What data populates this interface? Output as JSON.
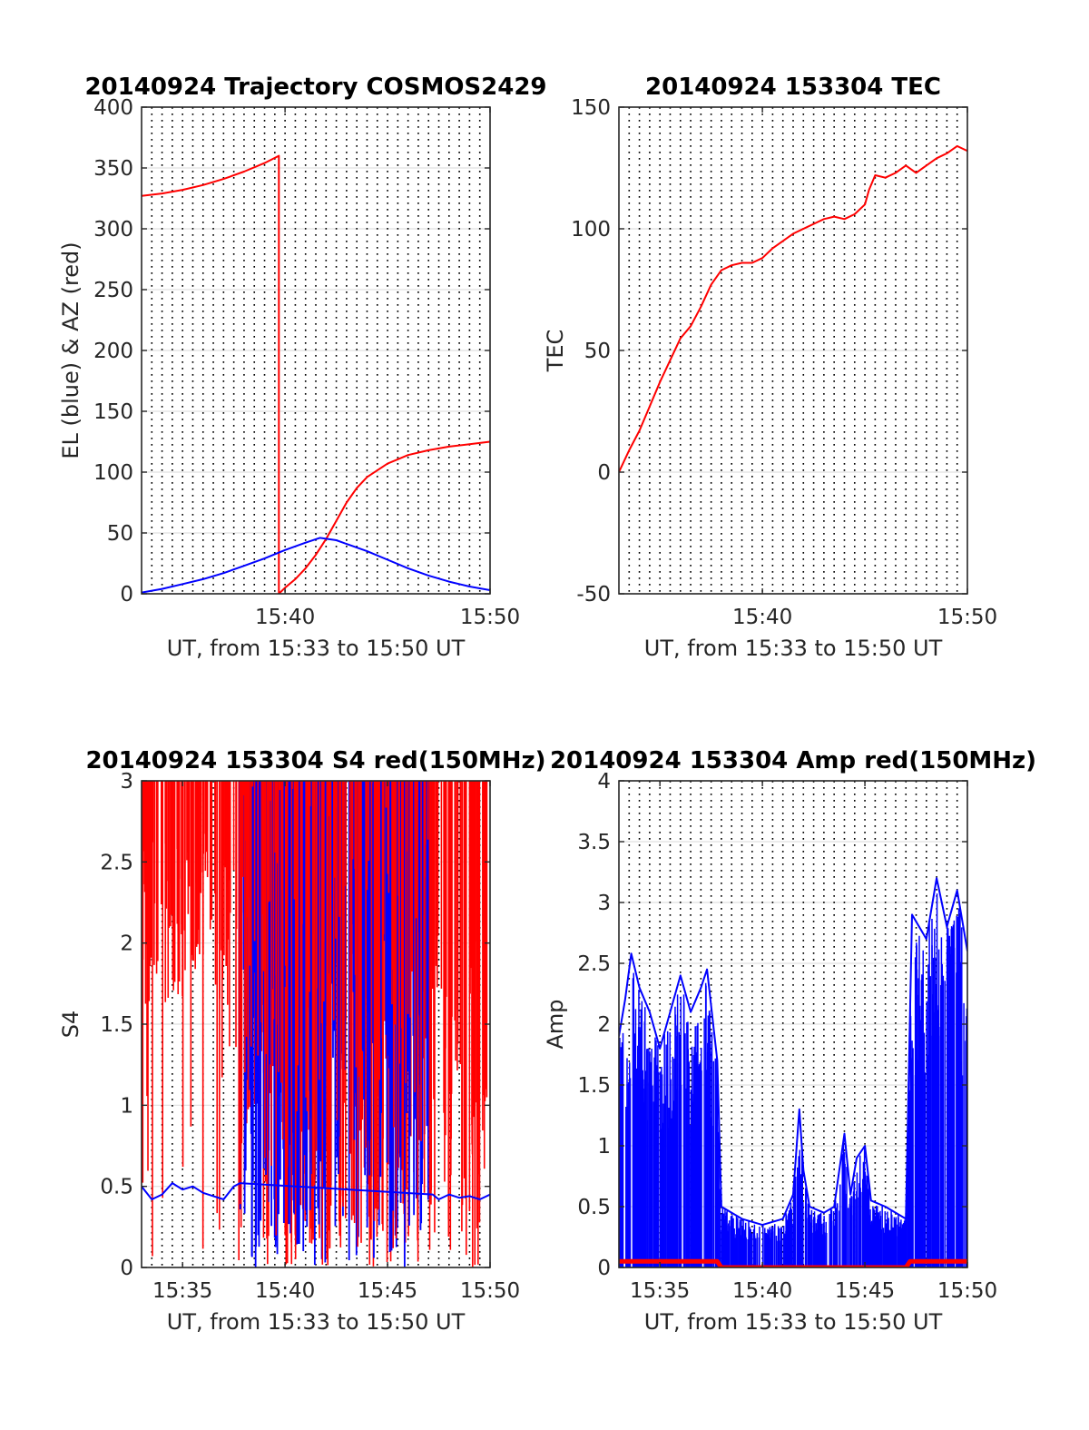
{
  "chart_data": [
    {
      "type": "line",
      "title": "20140924 Trajectory COSMOS2429",
      "xlabel": "UT, from 15:33 to 15:50 UT",
      "ylabel": "EL (blue) & AZ (red)",
      "xlim": [
        33,
        50
      ],
      "ylim": [
        0,
        400
      ],
      "yticks": [
        0,
        50,
        100,
        150,
        200,
        250,
        300,
        350,
        400
      ],
      "xticks": [
        40,
        50
      ],
      "xtick_labels": [
        "15:40",
        "15:50"
      ],
      "grid": "dotted vertical lines every 0.5 min, light horizontal at y ticks",
      "series": [
        {
          "color": "#ff0000",
          "x": [
            33,
            34,
            35,
            36,
            37,
            38,
            39,
            39.7,
            39.7,
            40,
            40.5,
            41,
            41.5,
            42,
            42.5,
            43,
            43.5,
            44,
            45,
            46,
            47,
            48,
            49,
            50
          ],
          "y": [
            327,
            329,
            332,
            336,
            341,
            347,
            354,
            360,
            0,
            5,
            12,
            21,
            32,
            45,
            60,
            75,
            87,
            96,
            107,
            114,
            118,
            121,
            123,
            125
          ]
        },
        {
          "color": "#0000ff",
          "x": [
            33,
            34,
            35,
            36,
            37,
            38,
            39,
            40,
            41,
            41.7,
            42.5,
            43,
            44,
            45,
            46,
            47,
            48,
            49,
            50
          ],
          "y": [
            1,
            4,
            8,
            12,
            17,
            23,
            29,
            36,
            42,
            46,
            44,
            41,
            35,
            28,
            21,
            15,
            10,
            6,
            3
          ]
        }
      ]
    },
    {
      "type": "line",
      "title": "20140924 153304 TEC",
      "xlabel": "UT, from 15:33 to 15:50 UT",
      "ylabel": "TEC",
      "xlim": [
        33,
        50
      ],
      "ylim": [
        -50,
        150
      ],
      "yticks": [
        -50,
        0,
        50,
        100,
        150
      ],
      "xticks": [
        40,
        50
      ],
      "xtick_labels": [
        "15:40",
        "15:50"
      ],
      "series": [
        {
          "color": "#ff0000",
          "x": [
            33,
            33.5,
            34,
            34.5,
            35,
            35.5,
            36,
            36.5,
            37,
            37.5,
            38,
            38.5,
            39,
            39.5,
            40,
            40.5,
            41,
            41.5,
            42,
            42.5,
            43,
            43.5,
            44,
            44.5,
            45,
            45.2,
            45.5,
            46,
            46.5,
            47,
            47.5,
            48,
            48.5,
            49,
            49.5,
            50
          ],
          "y": [
            0,
            9,
            17,
            27,
            37,
            46,
            55,
            60,
            68,
            77,
            83,
            85,
            86,
            86,
            88,
            92,
            95,
            98,
            100,
            102,
            104,
            105,
            104,
            106,
            110,
            116,
            122,
            121,
            123,
            126,
            123,
            126,
            129,
            131,
            134,
            132
          ]
        }
      ]
    },
    {
      "type": "line",
      "title": "20140924 153304 S4 red(150MHz)",
      "xlabel": "UT, from 15:33 to 15:50 UT",
      "ylabel": "S4",
      "xlim": [
        33,
        50
      ],
      "ylim": [
        0,
        3
      ],
      "yticks": [
        0,
        0.5,
        1,
        1.5,
        2,
        2.5,
        3
      ],
      "xticks": [
        35,
        40,
        45,
        50
      ],
      "xtick_labels": [
        "15:35",
        "15:40",
        "15:45",
        "15:50"
      ],
      "series": [
        {
          "color": "#0000ff",
          "x": [
            33,
            33.5,
            34,
            34.5,
            35,
            35.5,
            36,
            36.5,
            37,
            37.5,
            37.8,
            47.2,
            47.5,
            48,
            48.5,
            49,
            49.5,
            50
          ],
          "y": [
            0.5,
            0.42,
            0.45,
            0.52,
            0.48,
            0.5,
            0.46,
            0.44,
            0.42,
            0.5,
            0.52,
            0.45,
            0.42,
            0.45,
            0.43,
            0.44,
            0.42,
            0.45
          ]
        }
      ]
    },
    {
      "type": "line",
      "title": "20140924 153304 Amp red(150MHz)",
      "xlabel": "UT, from 15:33 to 15:50 UT",
      "ylabel": "Amp",
      "xlim": [
        33,
        50
      ],
      "ylim": [
        0,
        4
      ],
      "yticks": [
        0,
        0.5,
        1,
        1.5,
        2,
        2.5,
        3,
        3.5,
        4
      ],
      "xticks": [
        35,
        40,
        45,
        50
      ],
      "xtick_labels": [
        "15:35",
        "15:40",
        "15:45",
        "15:50"
      ],
      "series": [
        {
          "color": "#0000ff",
          "x": [
            33,
            33.3,
            33.6,
            34,
            34.5,
            35,
            35.5,
            36,
            36.5,
            37,
            37.3,
            37.8,
            38,
            39,
            40,
            41,
            41.5,
            41.8,
            42,
            42.3,
            43,
            43.5,
            44,
            44.3,
            44.6,
            45,
            45.3,
            46,
            47,
            47.3,
            48,
            48.5,
            49,
            49.5,
            50
          ],
          "y": [
            1.9,
            2.2,
            2.58,
            2.3,
            2.1,
            1.8,
            2.1,
            2.4,
            2.1,
            2.3,
            2.45,
            1.7,
            0.5,
            0.4,
            0.35,
            0.4,
            0.6,
            1.3,
            0.8,
            0.5,
            0.45,
            0.5,
            1.1,
            0.6,
            0.9,
            1.0,
            0.55,
            0.5,
            0.4,
            2.9,
            2.7,
            3.2,
            2.8,
            3.1,
            2.6
          ]
        },
        {
          "color": "#ff0000",
          "x": [
            33,
            37.8,
            38,
            47,
            47.2,
            50
          ],
          "y": [
            0.05,
            0.05,
            0,
            0,
            0.05,
            0.05
          ]
        }
      ]
    }
  ]
}
